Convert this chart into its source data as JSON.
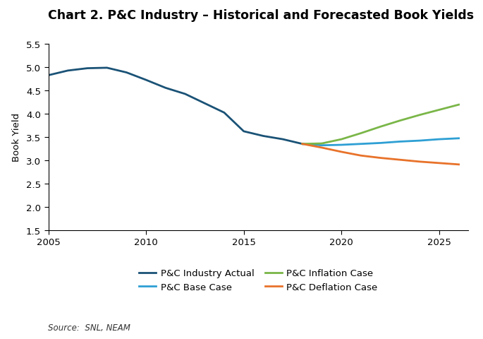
{
  "title": "Chart 2. P&C Industry – Historical and Forecasted Book Yields",
  "ylabel": "Book Yield",
  "source": "Source:  SNL, NEAM",
  "ylim": [
    1.5,
    5.5
  ],
  "xlim": [
    2005,
    2026.5
  ],
  "yticks": [
    1.5,
    2.0,
    2.5,
    3.0,
    3.5,
    4.0,
    4.5,
    5.0,
    5.5
  ],
  "xticks": [
    2005,
    2010,
    2015,
    2020,
    2025
  ],
  "actual_x": [
    2005,
    2006,
    2007,
    2008,
    2009,
    2010,
    2011,
    2012,
    2013,
    2014,
    2015,
    2016,
    2017,
    2018
  ],
  "actual_y": [
    4.82,
    4.92,
    4.97,
    4.98,
    4.88,
    4.72,
    4.55,
    4.42,
    4.22,
    4.02,
    3.62,
    3.52,
    3.45,
    3.35
  ],
  "actual_color": "#1a5276",
  "actual_label": "P&C Industry Actual",
  "base_x": [
    2018,
    2019,
    2020,
    2021,
    2022,
    2023,
    2024,
    2025,
    2026
  ],
  "base_y": [
    3.35,
    3.32,
    3.33,
    3.35,
    3.37,
    3.4,
    3.42,
    3.45,
    3.47
  ],
  "base_color": "#2e9fd4",
  "base_label": "P&C Base Case",
  "inflation_x": [
    2018,
    2019,
    2020,
    2021,
    2022,
    2023,
    2024,
    2025,
    2026
  ],
  "inflation_y": [
    3.35,
    3.36,
    3.45,
    3.58,
    3.72,
    3.85,
    3.97,
    4.08,
    4.19
  ],
  "inflation_color": "#7ab648",
  "inflation_label": "P&C Inflation Case",
  "deflation_x": [
    2018,
    2019,
    2020,
    2021,
    2022,
    2023,
    2024,
    2025,
    2026
  ],
  "deflation_y": [
    3.35,
    3.27,
    3.18,
    3.1,
    3.05,
    3.01,
    2.97,
    2.94,
    2.91
  ],
  "deflation_color": "#e8722a",
  "deflation_label": "P&C Deflation Case",
  "linewidth": 2.0,
  "title_fontsize": 12.5,
  "label_fontsize": 9.5,
  "tick_fontsize": 9.5,
  "legend_fontsize": 9.5,
  "source_fontsize": 8.5,
  "background_color": "#ffffff"
}
